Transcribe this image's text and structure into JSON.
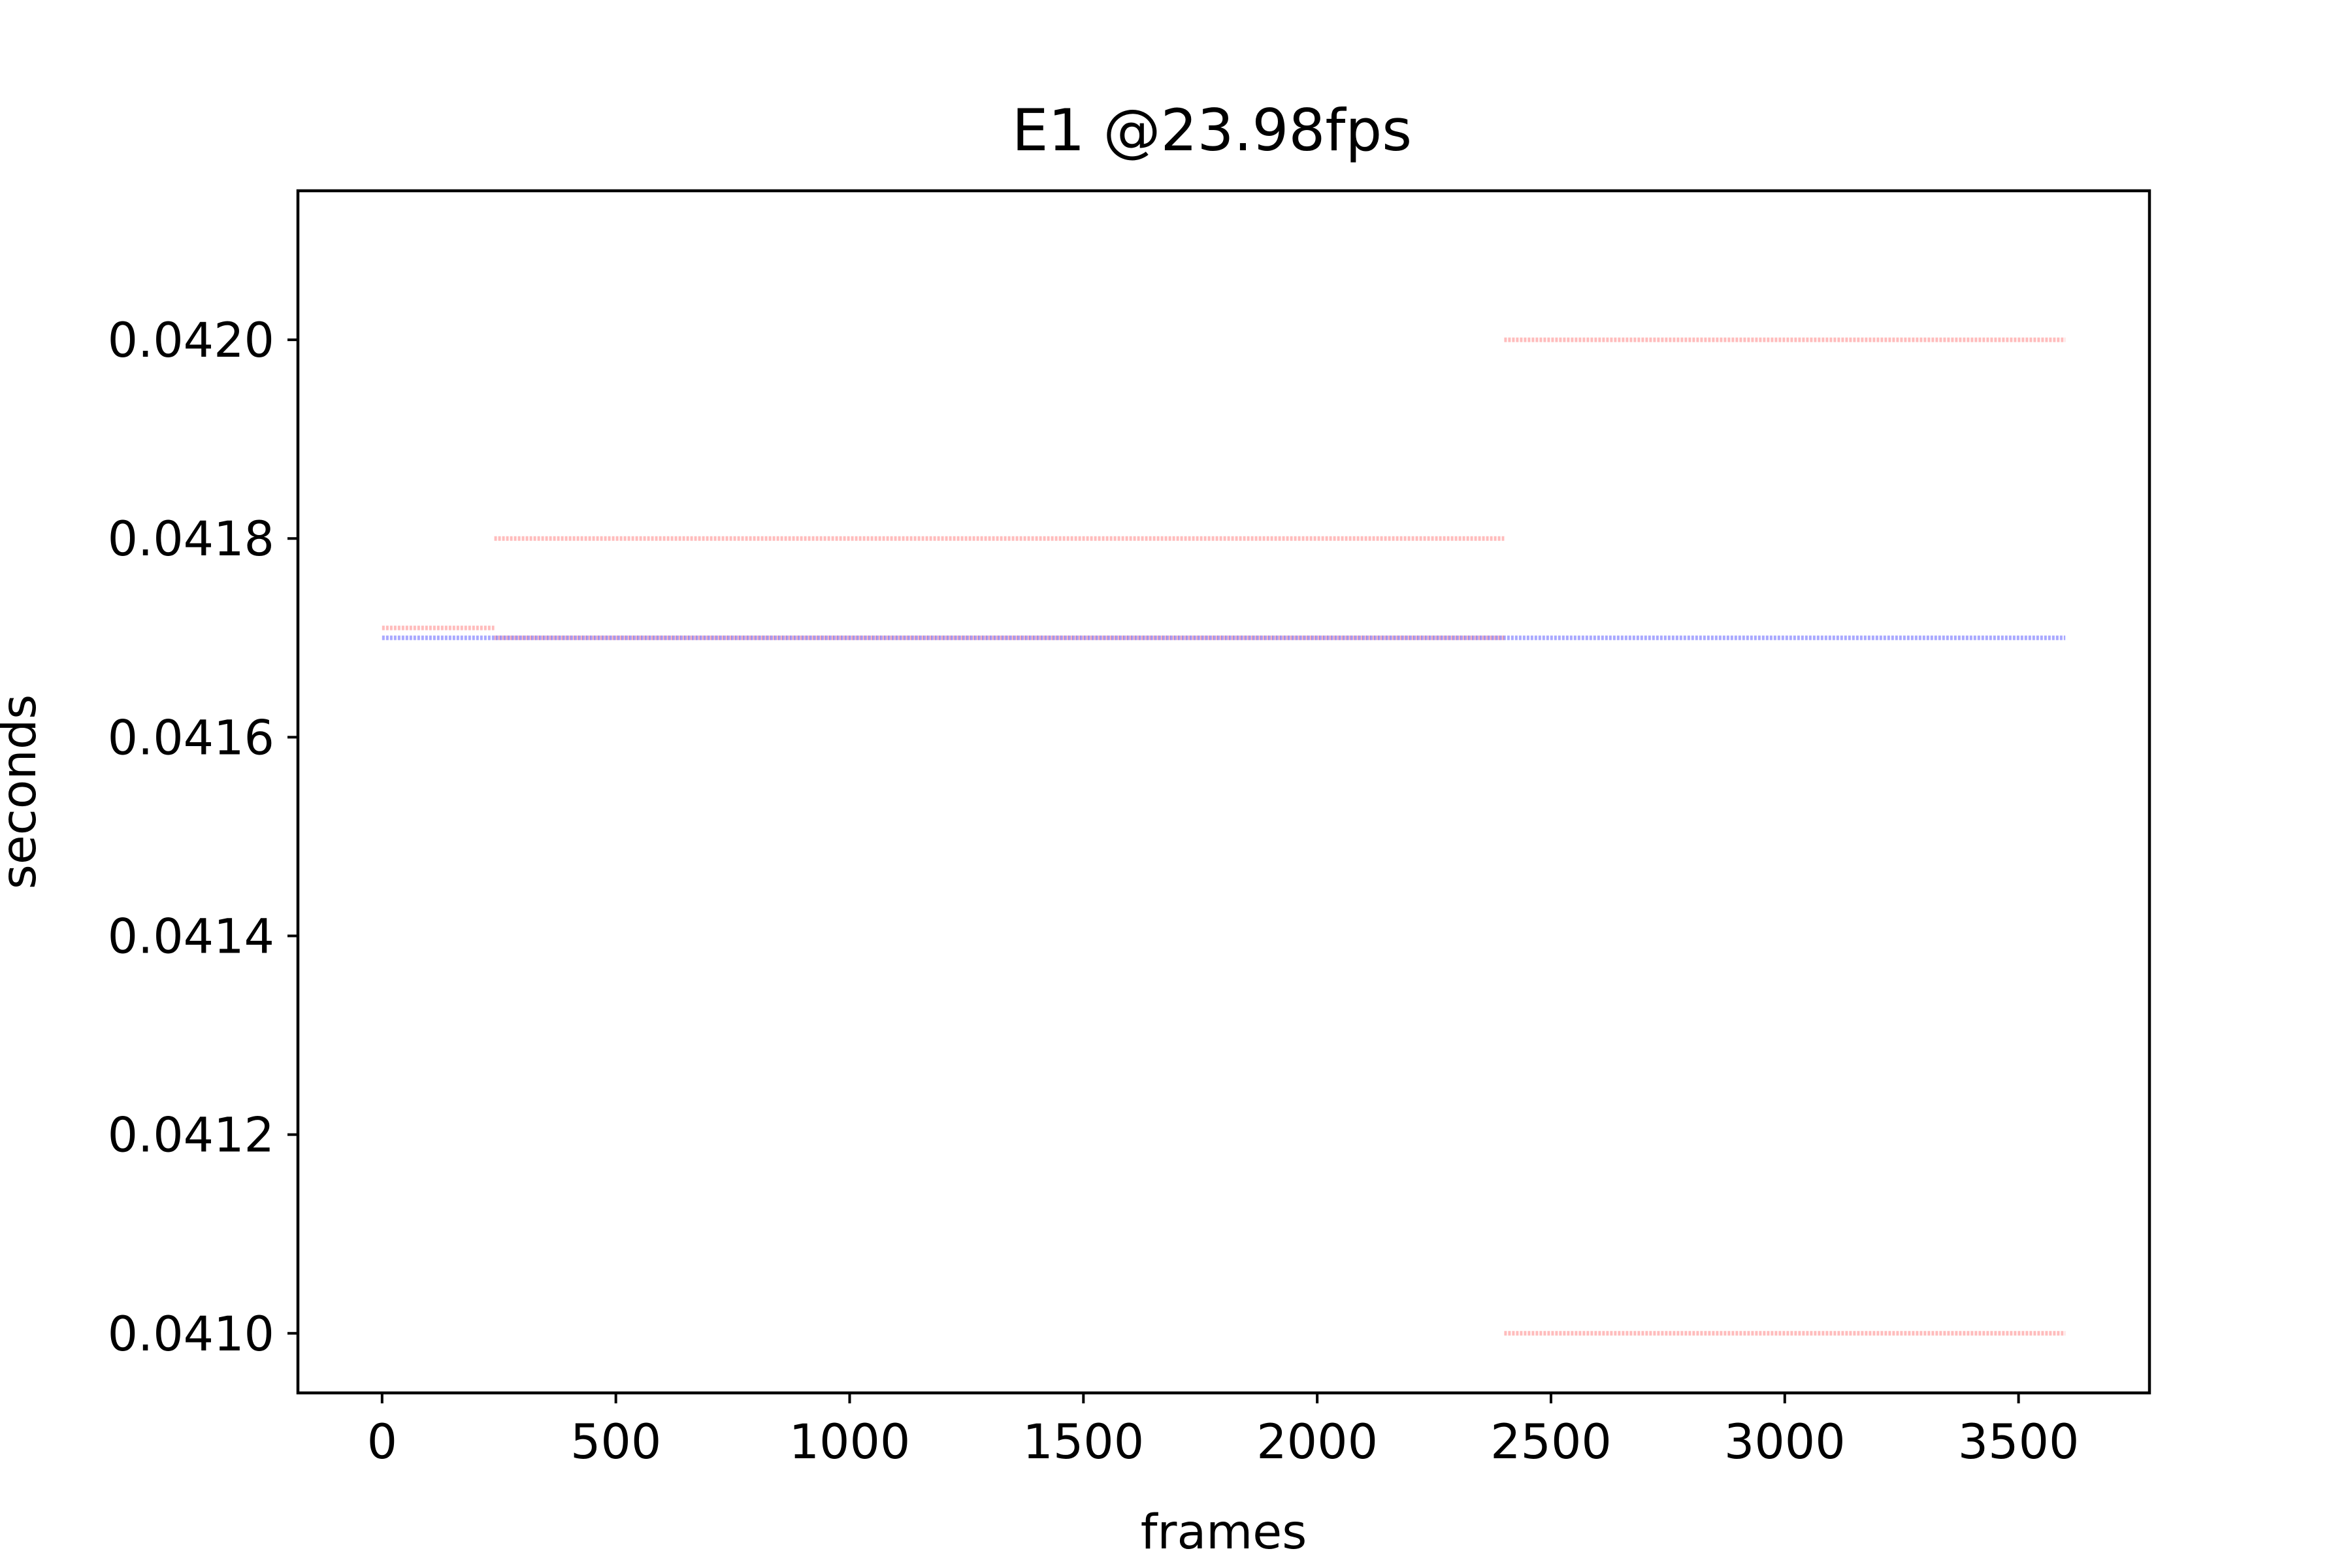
{
  "chart_data": {
    "type": "line",
    "title": "E1 @23.98fps",
    "xlabel": "frames",
    "ylabel": "seconds",
    "xlim": [
      -180,
      3780
    ],
    "ylim": [
      0.04094,
      0.04215
    ],
    "xticks": [
      0,
      500,
      1000,
      1500,
      2000,
      2500,
      3000,
      3500
    ],
    "xtick_labels": [
      "0",
      "500",
      "1000",
      "1500",
      "2000",
      "2500",
      "3000",
      "3500"
    ],
    "yticks": [
      0.041,
      0.0412,
      0.0414,
      0.0416,
      0.0418,
      0.042
    ],
    "ytick_labels": [
      "0.0410",
      "0.0412",
      "0.0414",
      "0.0416",
      "0.0418",
      "0.0420"
    ],
    "grid": false,
    "series": [
      {
        "color": "#ff4040",
        "opacity": 0.35,
        "segments": [
          {
            "x": [
              0,
              240
            ],
            "y": [
              0.04171,
              0.04171
            ]
          },
          {
            "x": [
              240,
              2400
            ],
            "y": [
              0.0417,
              0.0417
            ]
          },
          {
            "x": [
              240,
              2400
            ],
            "y": [
              0.0418,
              0.0418
            ]
          },
          {
            "x": [
              2400,
              3600
            ],
            "y": [
              0.042,
              0.042
            ]
          },
          {
            "x": [
              2400,
              3600
            ],
            "y": [
              0.041,
              0.041
            ]
          }
        ]
      },
      {
        "color": "#4040ff",
        "opacity": 0.45,
        "segments": [
          {
            "x": [
              0,
              3600
            ],
            "y": [
              0.0417,
              0.0417
            ]
          }
        ]
      }
    ]
  }
}
